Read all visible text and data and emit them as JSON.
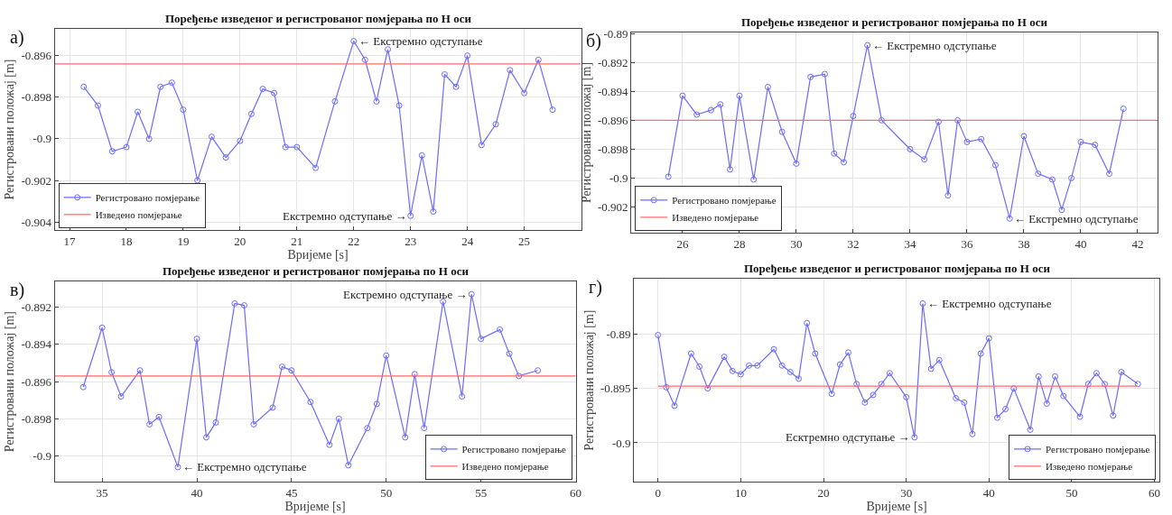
{
  "chart_data": [
    {
      "type": "line",
      "title": "Поређење изведеног и регистрованог помјерања по Н оси",
      "xlabel": "Вријеме [s]",
      "ylabel": "Регистровани положај [m]",
      "xlim": [
        16.74,
        26.0
      ],
      "ylim": [
        -0.9044,
        -0.8947
      ],
      "xticks": [
        17,
        18,
        19,
        20,
        21,
        22,
        23,
        24,
        25
      ],
      "yticks": [
        -0.904,
        -0.902,
        -0.9,
        -0.898,
        -0.896
      ],
      "grid": true,
      "legend": "bottom left",
      "series": [
        {
          "name": "Регистровано помјерање",
          "color": "#6b6bff",
          "marker": "circle",
          "x": [
            17.25,
            17.5,
            17.75,
            18.0,
            18.2,
            18.4,
            18.6,
            18.8,
            19.0,
            19.25,
            19.5,
            19.75,
            20.0,
            20.2,
            20.4,
            20.6,
            20.8,
            21.0,
            21.33,
            21.67,
            22.0,
            22.2,
            22.4,
            22.6,
            22.8,
            23.0,
            23.2,
            23.4,
            23.6,
            23.8,
            24.0,
            24.25,
            24.5,
            24.75,
            25.0,
            25.25,
            25.5
          ],
          "values": [
            -0.8975,
            -0.8984,
            -0.9006,
            -0.9004,
            -0.8987,
            -0.9,
            -0.8975,
            -0.8973,
            -0.8986,
            -0.902,
            -0.8999,
            -0.9009,
            -0.9001,
            -0.8988,
            -0.8976,
            -0.8978,
            -0.9004,
            -0.9004,
            -0.9014,
            -0.8982,
            -0.8953,
            -0.8962,
            -0.8982,
            -0.8957,
            -0.8984,
            -0.9037,
            -0.9008,
            -0.9035,
            -0.8969,
            -0.8975,
            -0.896,
            -0.9003,
            -0.8993,
            -0.8967,
            -0.8978,
            -0.8962,
            -0.8986
          ]
        },
        {
          "name": "Изведено помјерање",
          "color": "#ff6b6b",
          "marker": "none",
          "x": [
            16.74,
            26.0
          ],
          "values": [
            -0.8964,
            -0.8964
          ]
        }
      ],
      "annotations": [
        "а)",
        {
          "text": "← Екстремно одступање",
          "x": 22.0,
          "y": -0.8953
        },
        {
          "text": "Екстремно одступање →",
          "x": 23.0,
          "y": -0.9037
        }
      ]
    },
    {
      "type": "line",
      "title": "Поређење изведеног и регистрованог помјерања по Н оси",
      "ylabel": "Регистровани положај [m]",
      "xlim": [
        24.2,
        42.7
      ],
      "ylim": [
        -0.9038,
        -0.8899
      ],
      "xticks": [
        26,
        28,
        30,
        32,
        34,
        36,
        38,
        40,
        42
      ],
      "yticks": [
        -0.902,
        -0.9,
        -0.898,
        -0.896,
        -0.894,
        -0.892,
        -0.89
      ],
      "grid": true,
      "legend": "bottom left",
      "series": [
        {
          "name": "Регистровано помјерање",
          "color": "#6b6bff",
          "marker": "circle",
          "x": [
            25.5,
            26.0,
            26.5,
            27.0,
            27.33,
            27.67,
            28.0,
            28.5,
            29.0,
            29.5,
            30.0,
            30.5,
            31.0,
            31.33,
            31.67,
            32.0,
            32.5,
            33.0,
            34.0,
            34.5,
            35.0,
            35.33,
            35.67,
            36.0,
            36.5,
            37.0,
            37.5,
            38.0,
            38.5,
            39.0,
            39.33,
            39.67,
            40.0,
            40.5,
            41.0,
            41.5
          ],
          "values": [
            -0.8999,
            -0.8943,
            -0.8956,
            -0.8953,
            -0.8949,
            -0.8994,
            -0.8943,
            -0.9001,
            -0.8937,
            -0.8968,
            -0.899,
            -0.893,
            -0.8928,
            -0.8983,
            -0.8989,
            -0.8957,
            -0.8908,
            -0.896,
            -0.898,
            -0.8987,
            -0.8961,
            -0.9012,
            -0.896,
            -0.8975,
            -0.8973,
            -0.8991,
            -0.9028,
            -0.8971,
            -0.8997,
            -0.9001,
            -0.9022,
            -0.9,
            -0.8975,
            -0.8977,
            -0.8997,
            -0.8952
          ]
        },
        {
          "name": "Изведено помјерање",
          "color": "#ff6b6b",
          "marker": "none",
          "x": [
            24.2,
            42.7
          ],
          "values": [
            -0.896,
            -0.896
          ]
        }
      ],
      "annotations": [
        "б)",
        {
          "text": "← Екстремно одступање",
          "x": 32.5,
          "y": -0.8908
        },
        {
          "text": "← Екстремно одступање",
          "x": 37.5,
          "y": -0.9028
        }
      ]
    },
    {
      "type": "line",
      "title": "Поређење изведеног и регистрованог помјерања по Н оси",
      "xlabel": "Вријеме [s]",
      "ylabel": "Регистровани положај [m]",
      "xlim": [
        32.5,
        60
      ],
      "ylim": [
        -0.9014,
        -0.8906
      ],
      "xticks": [
        35,
        40,
        45,
        50,
        55,
        60
      ],
      "yticks": [
        -0.9,
        -0.898,
        -0.896,
        -0.894,
        -0.892
      ],
      "grid": true,
      "legend": "bottom right",
      "series": [
        {
          "name": "Регистровано помјерање",
          "color": "#6b6bff",
          "marker": "circle",
          "x": [
            34,
            35,
            35.5,
            36,
            37,
            37.5,
            38,
            39,
            40,
            40.5,
            41,
            42,
            42.5,
            43,
            44,
            44.5,
            45,
            46,
            47,
            47.5,
            48,
            49,
            49.5,
            50,
            51,
            51.5,
            52,
            53,
            54,
            54.5,
            55,
            56,
            56.5,
            57,
            58
          ],
          "values": [
            -0.8963,
            -0.8931,
            -0.8955,
            -0.8968,
            -0.8954,
            -0.8983,
            -0.8979,
            -0.9006,
            -0.8937,
            -0.899,
            -0.8982,
            -0.8918,
            -0.8919,
            -0.8983,
            -0.8974,
            -0.8952,
            -0.8954,
            -0.8971,
            -0.8994,
            -0.898,
            -0.9005,
            -0.8985,
            -0.8972,
            -0.8946,
            -0.899,
            -0.8956,
            -0.8985,
            -0.8917,
            -0.8968,
            -0.8913,
            -0.8937,
            -0.8932,
            -0.8945,
            -0.8957,
            -0.8954
          ]
        },
        {
          "name": "Изведено помјерање",
          "color": "#ff6b6b",
          "marker": "none",
          "x": [
            32.5,
            60
          ],
          "values": [
            -0.8957,
            -0.8957
          ]
        }
      ],
      "annotations": [
        "в)",
        {
          "text": "← Екстремно одступање",
          "x": 39,
          "y": -0.9006
        },
        {
          "text": "Екстремно одступање →",
          "x": 54.5,
          "y": -0.8913
        }
      ]
    },
    {
      "type": "line",
      "title": "Поређење изведеног и регистрованог помјерања по Н оси",
      "xlabel": "Вријеме [s]",
      "ylabel": "Регистровани положај [m]",
      "xlim": [
        -2.9,
        60.6
      ],
      "ylim": [
        -0.9036,
        -0.8849
      ],
      "xticks": [
        0,
        10,
        20,
        30,
        40,
        50,
        60
      ],
      "yticks": [
        -0.9,
        -0.895,
        -0.89
      ],
      "grid": true,
      "legend": "bottom right",
      "series": [
        {
          "name": "Регистровано помјерање",
          "color": "#6b6bff",
          "marker": "circle",
          "x": [
            0,
            1,
            2,
            4,
            5,
            6,
            8,
            9,
            10,
            11,
            12,
            14,
            15,
            16,
            17,
            18,
            19,
            21,
            22,
            23,
            24,
            25,
            26,
            27,
            28,
            30,
            31,
            32,
            33,
            34,
            36,
            37,
            38,
            39,
            40,
            41,
            42,
            43,
            45,
            46,
            47,
            48,
            49,
            51,
            52,
            53,
            54,
            55,
            56,
            58
          ],
          "values": [
            -0.8901,
            -0.8949,
            -0.8966,
            -0.8918,
            -0.893,
            -0.895,
            -0.8921,
            -0.8934,
            -0.8937,
            -0.8929,
            -0.8929,
            -0.8914,
            -0.8929,
            -0.8935,
            -0.8941,
            -0.889,
            -0.8918,
            -0.8955,
            -0.8928,
            -0.8917,
            -0.8946,
            -0.8963,
            -0.8956,
            -0.8946,
            -0.8936,
            -0.8958,
            -0.8995,
            -0.8872,
            -0.8932,
            -0.8924,
            -0.8959,
            -0.8963,
            -0.8992,
            -0.8918,
            -0.8904,
            -0.8977,
            -0.8969,
            -0.895,
            -0.8988,
            -0.8939,
            -0.8964,
            -0.8939,
            -0.8957,
            -0.8976,
            -0.8946,
            -0.8936,
            -0.8946,
            -0.8975,
            -0.8935,
            -0.8946
          ]
        },
        {
          "name": "Изведено помјерање",
          "color": "#ff6b6b",
          "marker": "none",
          "x": [
            0,
            58
          ],
          "values": [
            -0.8948,
            -0.8948
          ]
        }
      ],
      "annotations": [
        "г)",
        {
          "text": "← Екстремно одступање",
          "x": 32,
          "y": -0.8872
        },
        {
          "text": "Есктремно одступање →",
          "x": 31,
          "y": -0.8995
        }
      ]
    }
  ]
}
